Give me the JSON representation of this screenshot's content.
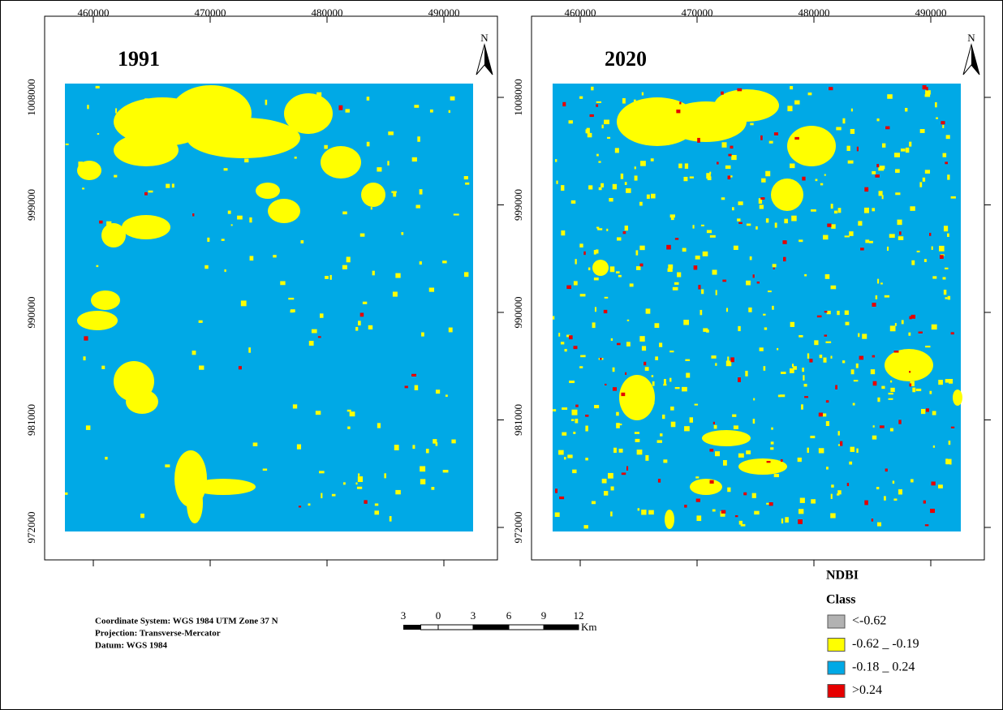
{
  "maps": [
    {
      "title": "1991",
      "xticks": [
        "460000",
        "470000",
        "480000",
        "490000"
      ],
      "yticks": [
        "1008000",
        "999000",
        "990000",
        "981000",
        "972000"
      ],
      "north": "N"
    },
    {
      "title": "2020",
      "xticks": [
        "460000",
        "470000",
        "480000",
        "490000"
      ],
      "yticks": [
        "1008000",
        "999000",
        "990000",
        "981000",
        "972000"
      ],
      "north": "N"
    }
  ],
  "legend": {
    "title": "NDBI",
    "subtitle": "Class",
    "items": [
      {
        "label": "<-0.62",
        "color": "#b2b2b2"
      },
      {
        "label": "-0.62 _ -0.19",
        "color": "#ffff00"
      },
      {
        "label": "-0.18 _ 0.24",
        "color": "#00a9e6"
      },
      {
        "label": ">0.24",
        "color": "#e60000"
      }
    ]
  },
  "scale_bar": {
    "labels": [
      "3",
      "0",
      "3",
      "6",
      "9",
      "12"
    ],
    "unit": "Km"
  },
  "info": [
    "Coordinate System: WGS 1984 UTM Zone 37 N",
    "Projection: Transverse-Mercator",
    "Datum: WGS 1984"
  ]
}
